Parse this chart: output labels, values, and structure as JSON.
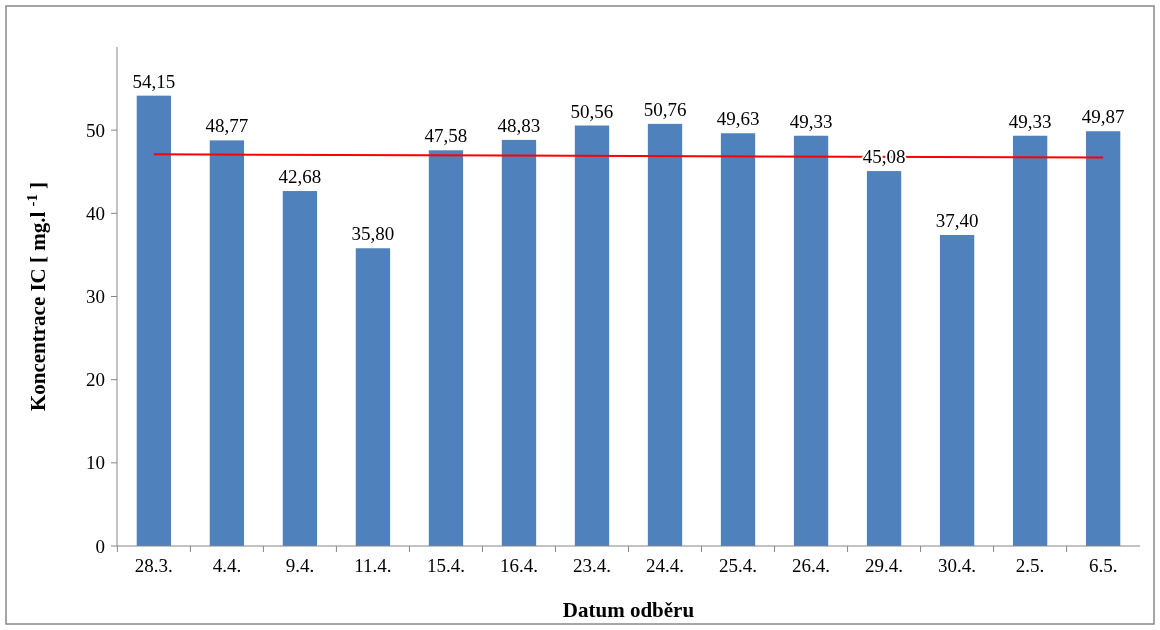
{
  "chart_data": {
    "type": "bar",
    "xlabel": "Datum odběru",
    "ylabel": "Koncentrace IC [ mg.l $^{-1}$ ]",
    "categories": [
      "28.3.",
      "4.4.",
      "9.4.",
      "11.4.",
      "15.4.",
      "16.4.",
      "23.4.",
      "24.4.",
      "25.4.",
      "26.4.",
      "29.4.",
      "30.4.",
      "2.5.",
      "6.5."
    ],
    "series": [
      {
        "color": "#4f81bd",
        "values": [
          54.15,
          48.77,
          42.68,
          35.8,
          47.58,
          48.83,
          50.56,
          50.76,
          49.63,
          49.33,
          45.08,
          37.4,
          49.33,
          49.87
        ],
        "value_labels": [
          "54,15",
          "48,77",
          "42,68",
          "35,80",
          "47,58",
          "48,83",
          "50,56",
          "50,76",
          "49,63",
          "49,33",
          "45,08",
          "37,40",
          "49,33",
          "49,87"
        ]
      },
      {
        "type": "line",
        "color": "#ff0000",
        "x": [
          "28.3.",
          "6.5."
        ],
        "values": [
          47.1,
          46.7
        ]
      }
    ],
    "ylim": [
      0,
      60
    ],
    "yticks": [
      0,
      10,
      20,
      30,
      40,
      50
    ],
    "grid": false
  }
}
